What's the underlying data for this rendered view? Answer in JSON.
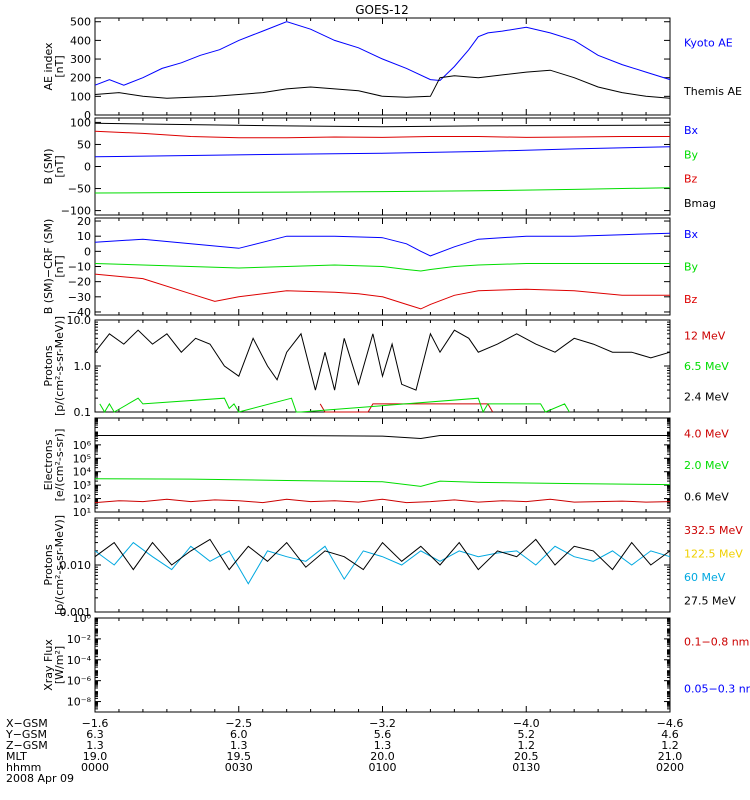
{
  "title": "GOES-12",
  "date": "2008 Apr 09",
  "colors": {
    "blue": "#0000ff",
    "red": "#dd0000",
    "green": "#00dd00",
    "black": "#000000",
    "cyan": "#00a8e0",
    "yellow": "#f0d000",
    "darkred": "#cc0000"
  },
  "chart_data": [
    {
      "type": "line",
      "id": "ae",
      "ylabel": "AE index\n[nT]",
      "ylim": [
        0,
        520
      ],
      "yticks": [
        "0",
        "100",
        "200",
        "300",
        "400",
        "500"
      ],
      "ytick_values": [
        0,
        100,
        200,
        300,
        400,
        500
      ],
      "series": [
        {
          "name": "Kyoto AE",
          "color": "blue",
          "x": [
            0,
            3,
            6,
            10,
            14,
            18,
            22,
            26,
            30,
            35,
            40,
            45,
            50,
            55,
            60,
            65,
            70,
            72,
            75,
            78,
            80,
            82,
            85,
            90,
            95,
            100,
            105,
            110,
            115,
            120
          ],
          "y": [
            160,
            190,
            160,
            200,
            250,
            280,
            320,
            350,
            400,
            450,
            500,
            460,
            400,
            360,
            300,
            250,
            190,
            185,
            260,
            350,
            420,
            440,
            450,
            470,
            440,
            400,
            320,
            270,
            230,
            190
          ]
        },
        {
          "name": "Themis AE",
          "color": "black",
          "x": [
            0,
            5,
            10,
            15,
            20,
            25,
            30,
            35,
            40,
            45,
            50,
            55,
            60,
            65,
            70,
            72,
            75,
            80,
            85,
            90,
            95,
            100,
            105,
            110,
            115,
            120
          ],
          "y": [
            110,
            120,
            100,
            90,
            95,
            100,
            110,
            120,
            140,
            150,
            140,
            130,
            100,
            95,
            100,
            200,
            210,
            200,
            215,
            230,
            240,
            200,
            150,
            120,
            100,
            90
          ]
        }
      ]
    },
    {
      "type": "line",
      "id": "bsm",
      "ylabel": "B (SM)\n[nT]",
      "ylim": [
        -110,
        110
      ],
      "yticks": [
        "−100",
        "−50",
        "0",
        "50",
        "100"
      ],
      "ytick_values": [
        -100,
        -50,
        0,
        50,
        100
      ],
      "series": [
        {
          "name": "Bx",
          "color": "blue",
          "x": [
            0,
            20,
            40,
            60,
            80,
            100,
            120
          ],
          "y": [
            22,
            25,
            28,
            30,
            34,
            40,
            45
          ]
        },
        {
          "name": "By",
          "color": "green",
          "x": [
            0,
            20,
            40,
            60,
            80,
            100,
            120
          ],
          "y": [
            -60,
            -59,
            -58,
            -57,
            -55,
            -52,
            -48
          ]
        },
        {
          "name": "Bz",
          "color": "red",
          "x": [
            0,
            10,
            20,
            30,
            40,
            50,
            60,
            70,
            80,
            90,
            100,
            110,
            120
          ],
          "y": [
            80,
            75,
            68,
            65,
            65,
            67,
            66,
            68,
            68,
            66,
            67,
            68,
            68
          ]
        },
        {
          "name": "Bmag",
          "color": "black",
          "x": [
            0,
            20,
            40,
            60,
            80,
            100,
            120
          ],
          "y": [
            98,
            95,
            92,
            90,
            92,
            93,
            94
          ]
        }
      ]
    },
    {
      "type": "line",
      "id": "bdiff",
      "ylabel": "B (SM)−CRF (SM)\n[nT]",
      "ylim": [
        -42,
        22
      ],
      "yticks": [
        "−40",
        "−30",
        "−20",
        "−10",
        "0",
        "10",
        "20"
      ],
      "ytick_values": [
        -40,
        -30,
        -20,
        -10,
        0,
        10,
        20
      ],
      "series": [
        {
          "name": "Bx",
          "color": "blue",
          "x": [
            0,
            10,
            20,
            30,
            40,
            50,
            60,
            65,
            68,
            70,
            75,
            80,
            90,
            100,
            110,
            120
          ],
          "y": [
            6,
            8,
            5,
            2,
            10,
            10,
            9,
            5,
            0,
            -3,
            3,
            8,
            10,
            10,
            11,
            12
          ]
        },
        {
          "name": "By",
          "color": "green",
          "x": [
            0,
            10,
            20,
            30,
            40,
            50,
            60,
            65,
            68,
            70,
            75,
            80,
            90,
            100,
            110,
            120
          ],
          "y": [
            -8,
            -9,
            -10,
            -11,
            -10,
            -9,
            -10,
            -12,
            -13,
            -12,
            -10,
            -9,
            -8,
            -8,
            -8,
            -8
          ]
        },
        {
          "name": "Bz",
          "color": "red",
          "x": [
            0,
            10,
            20,
            25,
            30,
            40,
            50,
            55,
            60,
            65,
            68,
            70,
            75,
            80,
            90,
            100,
            110,
            120
          ],
          "y": [
            -15,
            -18,
            -28,
            -33,
            -30,
            -26,
            -27,
            -28,
            -30,
            -35,
            -38,
            -35,
            -29,
            -26,
            -25,
            -26,
            -29,
            -29
          ]
        }
      ]
    },
    {
      "type": "line",
      "id": "protons-low",
      "scale": "log",
      "ylabel": "Protons\n[p/(cm²-s-sr-MeV)]",
      "ylim": [
        0.1,
        10
      ],
      "yticks": [
        "0.1",
        "1.0",
        "10.0"
      ],
      "ytick_values": [
        0.1,
        1,
        10
      ],
      "series": [
        {
          "name": "12 MeV",
          "color": "darkred",
          "x": [
            47,
            48,
            49,
            57,
            58,
            82,
            83
          ],
          "y": [
            0.15,
            0.1,
            0.1,
            0.1,
            0.15,
            0.15,
            0.1
          ]
        },
        {
          "name": "6.5 MeV",
          "color": "green",
          "x": [
            1,
            2,
            3,
            4,
            9,
            10,
            27,
            28,
            29,
            30,
            41,
            42,
            43,
            80,
            81,
            82,
            93,
            94,
            98,
            99
          ],
          "y": [
            0.15,
            0.1,
            0.15,
            0.1,
            0.2,
            0.15,
            0.2,
            0.12,
            0.15,
            0.1,
            0.2,
            0.1,
            0.1,
            0.2,
            0.1,
            0.15,
            0.15,
            0.1,
            0.15,
            0.1
          ]
        },
        {
          "name": "2.4 MeV",
          "color": "black",
          "x": [
            0,
            3,
            6,
            9,
            12,
            15,
            18,
            21,
            24,
            27,
            30,
            33,
            36,
            38,
            40,
            43,
            46,
            48,
            50,
            52,
            55,
            58,
            60,
            62,
            64,
            67,
            70,
            72,
            75,
            78,
            80,
            84,
            88,
            92,
            96,
            100,
            104,
            108,
            112,
            116,
            120
          ],
          "y": [
            2,
            5,
            3,
            6,
            3,
            5,
            2,
            4,
            3,
            1,
            0.6,
            4,
            1,
            0.5,
            2,
            5,
            0.3,
            2,
            0.3,
            4,
            0.4,
            5,
            0.6,
            3,
            0.4,
            0.3,
            5,
            2,
            6,
            4,
            2,
            3,
            5,
            3,
            2,
            4,
            3,
            2,
            2,
            1.5,
            2
          ]
        }
      ]
    },
    {
      "type": "line",
      "id": "electrons",
      "scale": "log",
      "ylabel": "Electrons\n[e/(cm²-s-sr)]",
      "ylim": [
        10,
        100000000
      ],
      "yticks": [
        "10¹",
        "10²",
        "10³",
        "10⁴",
        "10⁵",
        "10⁶"
      ],
      "ytick_values": [
        10,
        100,
        1000,
        10000,
        100000,
        1000000
      ],
      "series": [
        {
          "name": "4.0 MeV",
          "color": "darkred",
          "x": [
            0,
            5,
            10,
            15,
            20,
            25,
            30,
            35,
            40,
            45,
            50,
            55,
            60,
            65,
            70,
            75,
            80,
            85,
            90,
            95,
            100,
            105,
            110,
            115,
            120
          ],
          "y": [
            50,
            70,
            60,
            90,
            60,
            80,
            70,
            50,
            90,
            60,
            70,
            55,
            90,
            50,
            60,
            80,
            55,
            70,
            60,
            90,
            55,
            60,
            65,
            55,
            60
          ]
        },
        {
          "name": "2.0 MeV",
          "color": "green",
          "x": [
            0,
            20,
            40,
            60,
            68,
            72,
            80,
            100,
            120
          ],
          "y": [
            3000,
            2800,
            2200,
            1800,
            800,
            2000,
            1600,
            1300,
            1100
          ]
        },
        {
          "name": "0.6 MeV",
          "color": "black",
          "x": [
            0,
            20,
            40,
            60,
            68,
            72,
            80,
            100,
            120
          ],
          "y": [
            5000000,
            5000000,
            5000000,
            4500000,
            3000000,
            5000000,
            5000000,
            5000000,
            5000000
          ]
        }
      ]
    },
    {
      "type": "line",
      "id": "protons-high",
      "scale": "log",
      "ylabel": "Protons\n[p/(cm²-s-sr-MeV)]",
      "ylim": [
        0.001,
        0.1
      ],
      "yticks": [
        "0.001",
        "0.010"
      ],
      "ytick_values": [
        0.001,
        0.01
      ],
      "series": [
        {
          "name": "332.5 MeV",
          "color": "darkred",
          "x": [],
          "y": []
        },
        {
          "name": "122.5 MeV",
          "color": "yellow",
          "x": [],
          "y": []
        },
        {
          "name": "60 MeV",
          "color": "cyan",
          "x": [
            0,
            4,
            8,
            12,
            16,
            20,
            24,
            28,
            32,
            36,
            40,
            44,
            48,
            52,
            56,
            60,
            64,
            68,
            72,
            76,
            80,
            84,
            88,
            92,
            96,
            100,
            104,
            108,
            112,
            116,
            120
          ],
          "y": [
            0.02,
            0.01,
            0.03,
            0.015,
            0.008,
            0.025,
            0.012,
            0.02,
            0.004,
            0.02,
            0.015,
            0.012,
            0.025,
            0.005,
            0.02,
            0.015,
            0.01,
            0.02,
            0.012,
            0.02,
            0.015,
            0.018,
            0.02,
            0.01,
            0.025,
            0.015,
            0.012,
            0.02,
            0.01,
            0.02,
            0.015
          ]
        },
        {
          "name": "27.5 MeV",
          "color": "black",
          "x": [
            0,
            4,
            8,
            12,
            16,
            20,
            24,
            28,
            32,
            36,
            40,
            44,
            48,
            52,
            56,
            60,
            64,
            68,
            72,
            76,
            80,
            84,
            88,
            92,
            96,
            100,
            104,
            108,
            112,
            116,
            120
          ],
          "y": [
            0.015,
            0.03,
            0.008,
            0.03,
            0.01,
            0.02,
            0.035,
            0.008,
            0.025,
            0.012,
            0.03,
            0.009,
            0.02,
            0.015,
            0.008,
            0.03,
            0.012,
            0.025,
            0.01,
            0.03,
            0.008,
            0.02,
            0.015,
            0.035,
            0.01,
            0.025,
            0.02,
            0.008,
            0.03,
            0.01,
            0.02
          ]
        }
      ]
    },
    {
      "type": "line",
      "id": "xray",
      "scale": "log",
      "ylabel": "Xray Flux\n[W/m²]",
      "ylim": [
        1e-09,
        1
      ],
      "yticks": [
        "10⁻⁸",
        "10⁻⁶",
        "10⁻⁴",
        "10⁻²",
        "10⁰"
      ],
      "ytick_values": [
        1e-08,
        1e-06,
        0.0001,
        0.01,
        1
      ],
      "series": [
        {
          "name": "0.1−0.8 nm",
          "color": "darkred",
          "x": [],
          "y": []
        },
        {
          "name": "0.05−0.3 nr",
          "color": "blue",
          "x": [],
          "y": []
        }
      ]
    }
  ],
  "xaxis": {
    "xlim": [
      0,
      120
    ],
    "tick_values": [
      0,
      30,
      60,
      90,
      120
    ],
    "rows": [
      {
        "label": "X−GSM",
        "values": [
          "−1.6",
          "−2.5",
          "−3.2",
          "−4.0",
          "−4.6"
        ]
      },
      {
        "label": "Y−GSM",
        "values": [
          "6.3",
          "6.0",
          "5.6",
          "5.2",
          "4.6"
        ]
      },
      {
        "label": "Z−GSM",
        "values": [
          "1.3",
          "1.3",
          "1.3",
          "1.2",
          "1.2"
        ]
      },
      {
        "label": "MLT",
        "values": [
          "19.0",
          "19.5",
          "20.0",
          "20.5",
          "21.0"
        ]
      },
      {
        "label": "hhmm",
        "values": [
          "0000",
          "0030",
          "0100",
          "0130",
          "0200"
        ]
      }
    ]
  }
}
